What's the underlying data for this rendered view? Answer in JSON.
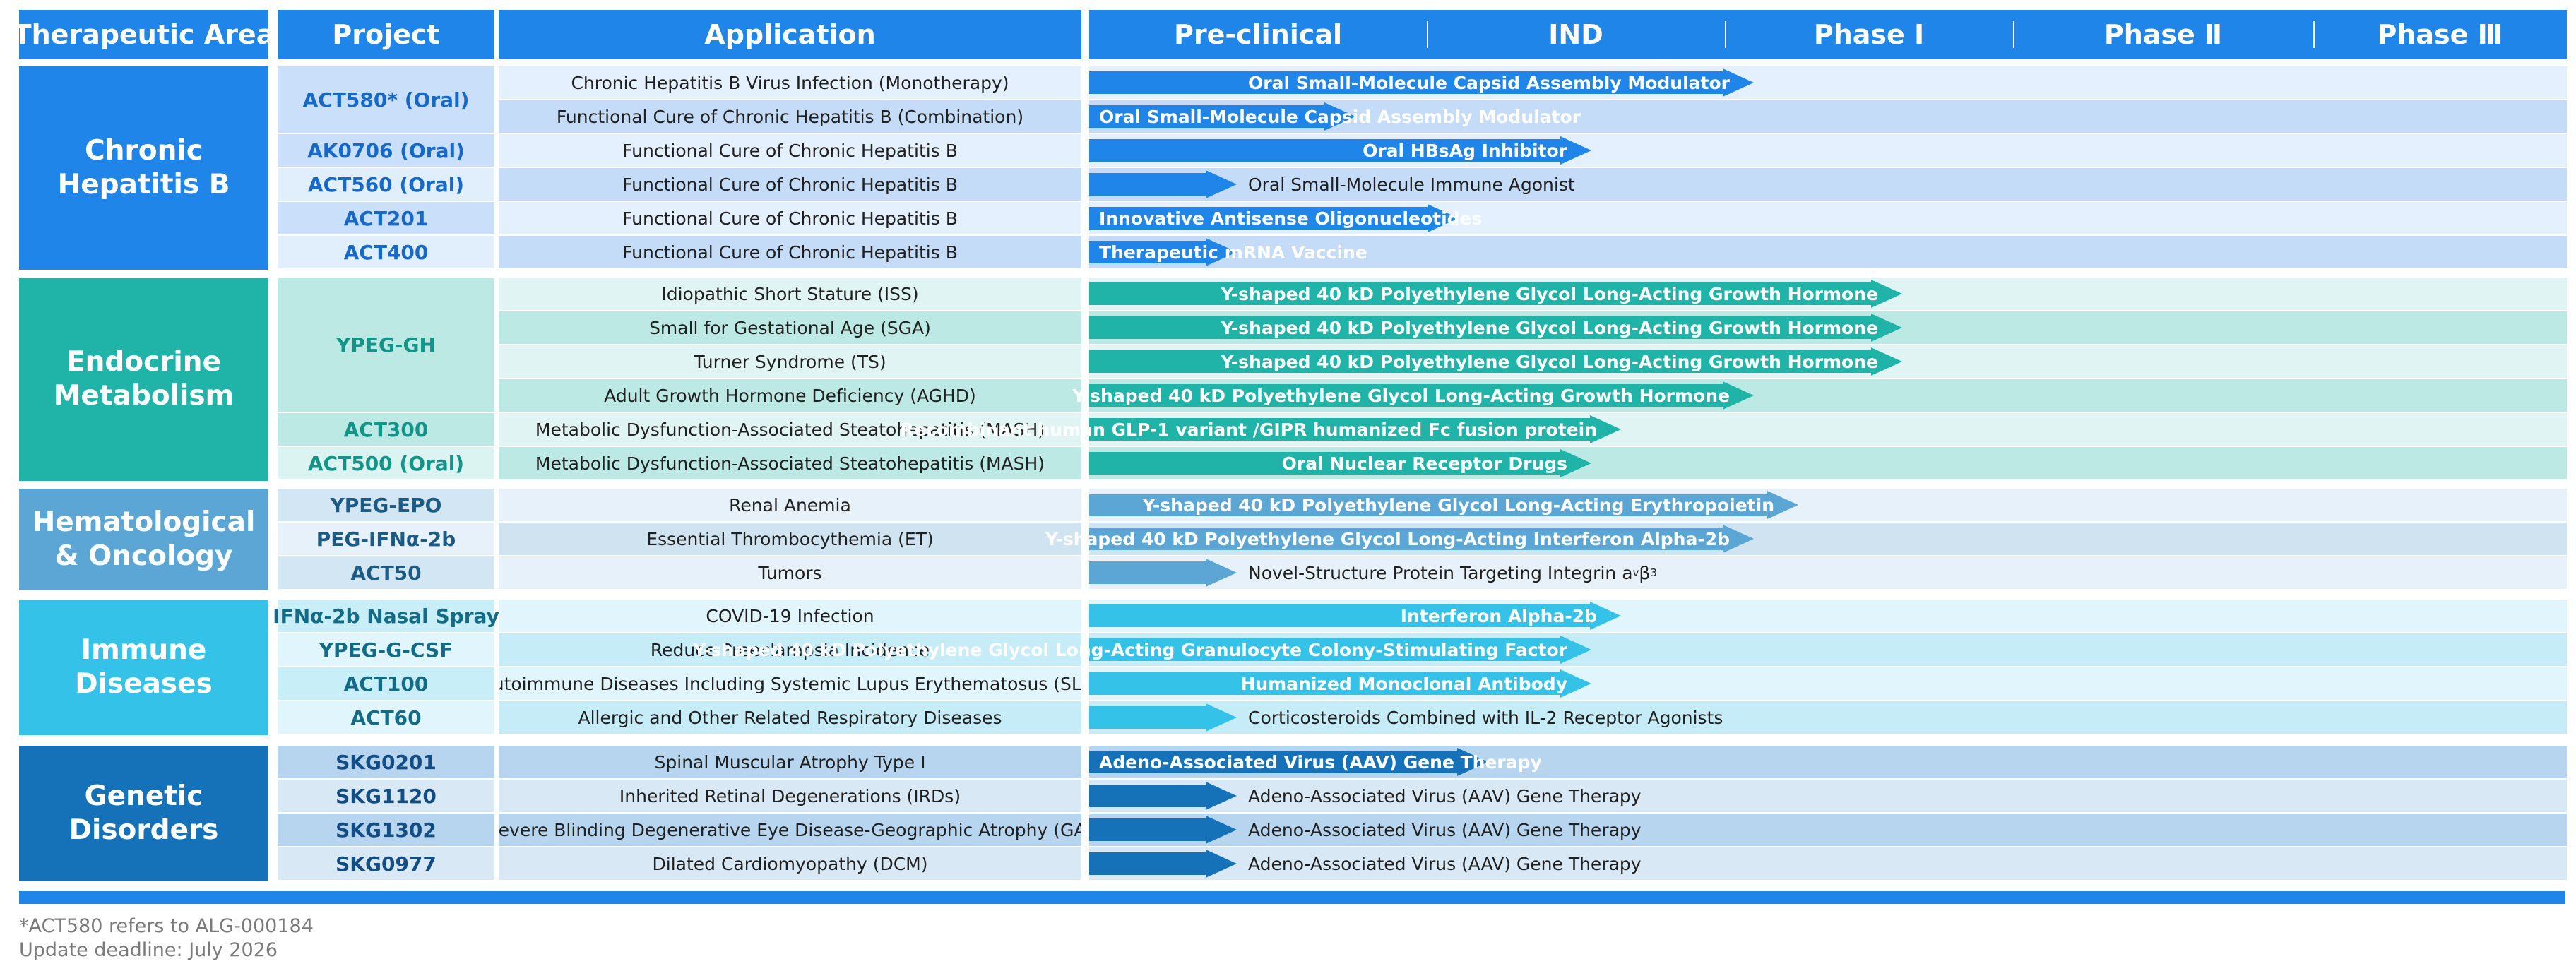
{
  "header": {
    "therapeutic_area": "Therapeutic Area",
    "project": "Project",
    "application": "Application",
    "phases": [
      "Pre-clinical",
      "IND",
      "Phase Ⅰ",
      "Phase Ⅱ",
      "Phase Ⅲ"
    ]
  },
  "colors": {
    "header": "#1f85e8",
    "hepatitis": {
      "area": "#1f85e8",
      "bar": "#1f85e8",
      "proj_a": "#c9dffa",
      "proj_b": "#e1effd",
      "row_a": "#e4f0fd",
      "row_b": "#c4dcf8",
      "proj_text": "#1669c9"
    },
    "endocrine": {
      "area": "#20b3a8",
      "bar": "#20b3a8",
      "proj_a": "#bce9e4",
      "proj_b": "#dbf3f1",
      "row_a": "#e0f5f3",
      "row_b": "#bce9e4",
      "proj_text": "#139488"
    },
    "hematological": {
      "area": "#5ba6d4",
      "bar": "#5ba6d4",
      "proj_a": "#d2e6f4",
      "proj_b": "#e6f1f9",
      "row_a": "#e6f1f9",
      "row_b": "#cfe3f1",
      "proj_text": "#1e5b84"
    },
    "immune": {
      "area": "#35c2e8",
      "bar": "#35c2e8",
      "proj_a": "#c8eef8",
      "proj_b": "#e0f6fc",
      "row_a": "#e0f6fc",
      "row_b": "#c5ecf7",
      "proj_text": "#136b86"
    },
    "genetic": {
      "area": "#1672b8",
      "bar": "#1672b8",
      "proj_a": "#b7d5ee",
      "proj_b": "#d8e8f5",
      "row_a": "#b7d5ee",
      "row_b": "#d8e8f5",
      "proj_text": "#124e84"
    }
  },
  "groups": [
    {
      "key": "hepatitis",
      "area": "Chronic Hepatitis B",
      "area_lines": [
        "Chronic",
        "Hepatitis B"
      ],
      "rows": [
        {
          "project": "ACT580* (Oral)",
          "project_span": 2,
          "application": "Chronic Hepatitis B Virus Infection (Monotherapy)",
          "stage": "Phase Ⅱ",
          "progress": 0.45,
          "label": "Oral Small-Molecule Capsid Assembly Modulator",
          "label_pos": "inside"
        },
        {
          "project": null,
          "application": "Functional Cure of Chronic Hepatitis B (Combination)",
          "stage": "IND",
          "progress": 0.18,
          "label": "Oral Small-Molecule Capsid Assembly Modulator",
          "label_pos": "inside"
        },
        {
          "project": "AK0706 (Oral)",
          "project_span": 1,
          "application": "Functional Cure of Chronic Hepatitis B",
          "stage": "Phase Ⅰ",
          "progress": 0.34,
          "label": "Oral HBsAg Inhibitor",
          "label_pos": "inside"
        },
        {
          "project": "ACT560 (Oral)",
          "project_span": 1,
          "application": "Functional Cure of Chronic Hepatitis B",
          "stage": "Pre-clinical",
          "progress": 0.1,
          "label": "Oral Small-Molecule Immune Agonist",
          "label_pos": "outside"
        },
        {
          "project": "ACT201",
          "project_span": 1,
          "application": "Functional Cure of Chronic Hepatitis B",
          "stage": "IND",
          "progress": 0.25,
          "label": "Innovative Antisense Oligonucleotides",
          "label_pos": "inside"
        },
        {
          "project": "ACT400",
          "project_span": 1,
          "application": "Functional Cure of Chronic Hepatitis B",
          "stage": "Pre-clinical",
          "progress": 0.1,
          "label": "Therapeutic mRNA Vaccine",
          "label_pos": "inside"
        }
      ]
    },
    {
      "key": "endocrine",
      "area": "Endocrine Metabolism",
      "area_lines": [
        "Endocrine",
        "Metabolism"
      ],
      "rows": [
        {
          "project": "YPEG-GH",
          "project_span": 4,
          "application": "Idiopathic Short Stature (ISS)",
          "stage": "Phase Ⅲ",
          "progress": 0.55,
          "label": "Y-shaped 40 kD Polyethylene Glycol Long-Acting Growth Hormone",
          "label_pos": "inside"
        },
        {
          "project": null,
          "application": "Small for Gestational Age (SGA)",
          "stage": "Phase Ⅲ",
          "progress": 0.55,
          "label": "Y-shaped 40 kD Polyethylene Glycol Long-Acting Growth Hormone",
          "label_pos": "inside"
        },
        {
          "project": null,
          "application": "Turner Syndrome (TS)",
          "stage": "Phase Ⅲ",
          "progress": 0.55,
          "label": "Y-shaped 40 kD Polyethylene Glycol Long-Acting Growth Hormone",
          "label_pos": "inside"
        },
        {
          "project": null,
          "application": "Adult Growth Hormone Deficiency (AGHD)",
          "stage": "Phase Ⅱ",
          "progress": 0.45,
          "label": "Y-shaped 40 kD Polyethylene Glycol Long-Acting Growth Hormone",
          "label_pos": "inside"
        },
        {
          "project": "ACT300",
          "project_span": 1,
          "application": "Metabolic Dysfunction-Associated Steatohepatitis (MASH)",
          "stage": "Phase Ⅰ",
          "progress": 0.36,
          "label": "Recombinant human GLP-1 variant /GIPR humanized Fc fusion protein",
          "label_pos": "inside"
        },
        {
          "project": "ACT500 (Oral)",
          "project_span": 1,
          "application": "Metabolic Dysfunction-Associated Steatohepatitis (MASH)",
          "stage": "Phase Ⅰ",
          "progress": 0.34,
          "label": "Oral Nuclear Receptor Drugs",
          "label_pos": "inside"
        }
      ]
    },
    {
      "key": "hematological",
      "area": "Hematological & Oncology",
      "area_lines": [
        "Hematological",
        "& Oncology"
      ],
      "rows": [
        {
          "project": "YPEG-EPO",
          "project_span": 1,
          "application": "Renal Anemia",
          "stage": "Phase Ⅱ",
          "progress": 0.48,
          "label": "Y-shaped 40 kD Polyethylene Glycol Long-Acting Erythropoietin",
          "label_pos": "inside"
        },
        {
          "project": "PEG-IFNα-2b",
          "project_span": 1,
          "application": "Essential Thrombocythemia (ET)",
          "stage": "Phase Ⅱ",
          "progress": 0.45,
          "label": "Y-shaped 40 kD Polyethylene Glycol Long-Acting Interferon Alpha-2b",
          "label_pos": "inside"
        },
        {
          "project": "ACT50",
          "project_span": 1,
          "application": "Tumors",
          "stage": "Pre-clinical",
          "progress": 0.1,
          "label": "Novel-Structure Protein Targeting Integrin a",
          "label_sub1": "v",
          "label_mid": "β",
          "label_sub2": "3",
          "label_pos": "outside"
        }
      ]
    },
    {
      "key": "immune",
      "area": "Immune Diseases",
      "area_lines": [
        "Immune",
        "Diseases"
      ],
      "rows": [
        {
          "project": "IFNα-2b Nasal Spray",
          "project_span": 1,
          "application": "COVID-19 Infection",
          "stage": "Phase Ⅰ",
          "progress": 0.36,
          "label": "Interferon Alpha-2b",
          "label_pos": "inside"
        },
        {
          "project": "YPEG-G-CSF",
          "project_span": 1,
          "application": "Reduce Preeclampsia Incidence",
          "stage": "Phase Ⅰ",
          "progress": 0.34,
          "label": "Y-shaped 40 kD Polyethylene Glycol Long-Acting Granulocyte Colony-Stimulating Factor",
          "label_pos": "inside"
        },
        {
          "project": "ACT100",
          "project_span": 1,
          "application": "Autoimmune Diseases Including Systemic Lupus Erythematosus (SLE)",
          "stage": "Phase Ⅰ",
          "progress": 0.34,
          "label": "Humanized Monoclonal Antibody",
          "label_pos": "inside"
        },
        {
          "project": "ACT60",
          "project_span": 1,
          "application": "Allergic and Other Related Respiratory Diseases",
          "stage": "Pre-clinical",
          "progress": 0.1,
          "label": "Corticosteroids Combined with IL-2 Receptor Agonists",
          "label_pos": "outside"
        }
      ]
    },
    {
      "key": "genetic",
      "area": "Genetic Disorders",
      "area_lines": [
        "Genetic",
        "Disorders"
      ],
      "rows": [
        {
          "project": "SKG0201",
          "project_span": 1,
          "application": "Spinal Muscular Atrophy Type I",
          "stage": "IND",
          "progress": 0.27,
          "label": "Adeno-Associated Virus (AAV) Gene Therapy",
          "label_pos": "inside"
        },
        {
          "project": "SKG1120",
          "project_span": 1,
          "application": "Inherited Retinal Degenerations (IRDs)",
          "stage": "Pre-clinical",
          "progress": 0.1,
          "label": "Adeno-Associated Virus (AAV) Gene Therapy",
          "label_pos": "outside"
        },
        {
          "project": "SKG1302",
          "project_span": 1,
          "application": "Severe Blinding Degenerative Eye Disease-Geographic Atrophy (GA)",
          "stage": "Pre-clinical",
          "progress": 0.1,
          "label": "Adeno-Associated Virus (AAV) Gene Therapy",
          "label_pos": "outside"
        },
        {
          "project": "SKG0977",
          "project_span": 1,
          "application": "Dilated Cardiomyopathy (DCM)",
          "stage": "Pre-clinical",
          "progress": 0.1,
          "label": "Adeno-Associated Virus (AAV) Gene Therapy",
          "label_pos": "outside"
        }
      ]
    }
  ],
  "footnotes": [
    "*ACT580 refers to ALG-000184",
    "Update deadline: July 2026"
  ]
}
